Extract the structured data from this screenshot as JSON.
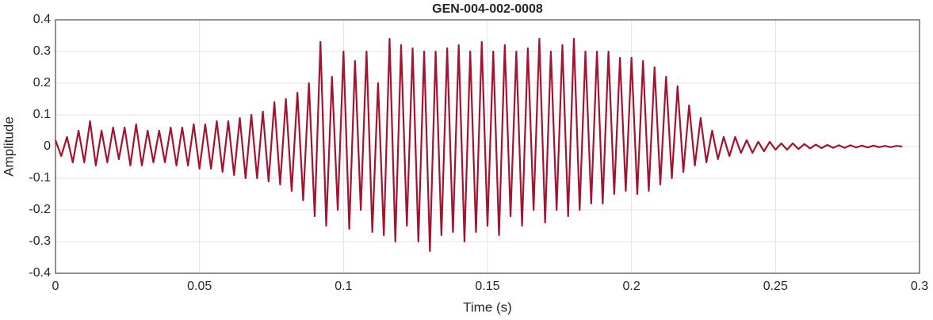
{
  "chart_data": {
    "type": "line",
    "title": "GEN-004-002-0008",
    "xlabel": "Time (s)",
    "ylabel": "Amplitude",
    "xlim": [
      0,
      0.3
    ],
    "ylim": [
      -0.4,
      0.4
    ],
    "xticks": [
      0,
      0.05,
      0.1,
      0.15,
      0.2,
      0.25,
      0.3
    ],
    "yticks": [
      -0.4,
      -0.3,
      -0.2,
      -0.1,
      0,
      0.1,
      0.2,
      0.3,
      0.4
    ],
    "grid": true,
    "x": [
      0,
      0.002,
      0.004,
      0.006,
      0.008,
      0.01,
      0.012,
      0.014,
      0.016,
      0.018,
      0.02,
      0.022,
      0.024,
      0.026,
      0.028,
      0.03,
      0.032,
      0.034,
      0.036,
      0.038,
      0.04,
      0.042,
      0.044,
      0.046,
      0.048,
      0.05,
      0.052,
      0.054,
      0.056,
      0.058,
      0.06,
      0.062,
      0.064,
      0.066,
      0.068,
      0.07,
      0.072,
      0.074,
      0.076,
      0.078,
      0.08,
      0.082,
      0.084,
      0.086,
      0.088,
      0.09,
      0.092,
      0.094,
      0.096,
      0.098,
      0.1,
      0.102,
      0.104,
      0.106,
      0.108,
      0.11,
      0.112,
      0.114,
      0.116,
      0.118,
      0.12,
      0.122,
      0.124,
      0.126,
      0.128,
      0.13,
      0.132,
      0.134,
      0.136,
      0.138,
      0.14,
      0.142,
      0.144,
      0.146,
      0.148,
      0.15,
      0.152,
      0.154,
      0.156,
      0.158,
      0.16,
      0.162,
      0.164,
      0.166,
      0.168,
      0.17,
      0.172,
      0.174,
      0.176,
      0.178,
      0.18,
      0.182,
      0.184,
      0.186,
      0.188,
      0.19,
      0.192,
      0.194,
      0.196,
      0.198,
      0.2,
      0.202,
      0.204,
      0.206,
      0.208,
      0.21,
      0.212,
      0.214,
      0.216,
      0.218,
      0.22,
      0.222,
      0.224,
      0.226,
      0.228,
      0.23,
      0.232,
      0.234,
      0.236,
      0.238,
      0.24,
      0.242,
      0.244,
      0.246,
      0.248,
      0.25,
      0.252,
      0.254,
      0.256,
      0.258,
      0.26,
      0.262,
      0.264,
      0.266,
      0.268,
      0.27,
      0.272,
      0.274,
      0.276,
      0.278,
      0.28,
      0.282,
      0.284,
      0.286,
      0.288,
      0.29,
      0.292,
      0.294
    ],
    "series": [
      {
        "color": "#a2142f",
        "values": [
          0.02,
          -0.03,
          0.03,
          -0.05,
          0.05,
          -0.05,
          0.08,
          -0.06,
          0.05,
          -0.05,
          0.06,
          -0.04,
          0.06,
          -0.06,
          0.07,
          -0.06,
          0.05,
          -0.05,
          0.05,
          -0.05,
          0.06,
          -0.06,
          0.06,
          -0.06,
          0.07,
          -0.07,
          0.07,
          -0.07,
          0.08,
          -0.08,
          0.08,
          -0.09,
          0.09,
          -0.1,
          0.1,
          -0.1,
          0.11,
          -0.11,
          0.14,
          -0.12,
          0.15,
          -0.14,
          0.17,
          -0.17,
          0.2,
          -0.22,
          0.33,
          -0.25,
          0.22,
          -0.2,
          0.3,
          -0.26,
          0.27,
          -0.2,
          0.3,
          -0.27,
          0.2,
          -0.28,
          0.34,
          -0.3,
          0.32,
          -0.25,
          0.31,
          -0.3,
          0.3,
          -0.33,
          0.3,
          -0.28,
          0.31,
          -0.27,
          0.32,
          -0.3,
          0.3,
          -0.27,
          0.33,
          -0.25,
          0.3,
          -0.28,
          0.32,
          -0.22,
          0.3,
          -0.25,
          0.31,
          -0.2,
          0.34,
          -0.24,
          0.3,
          -0.2,
          0.32,
          -0.22,
          0.34,
          -0.2,
          0.3,
          -0.18,
          0.3,
          -0.18,
          0.3,
          -0.15,
          0.28,
          -0.14,
          0.28,
          -0.15,
          0.27,
          -0.14,
          0.25,
          -0.12,
          0.22,
          -0.1,
          0.19,
          -0.08,
          0.13,
          -0.06,
          0.09,
          -0.05,
          0.05,
          -0.04,
          0.03,
          -0.03,
          0.03,
          -0.02,
          0.02,
          -0.02,
          0.015,
          -0.015,
          0.015,
          -0.01,
          0.01,
          -0.01,
          0.01,
          -0.008,
          0.008,
          -0.006,
          0.006,
          -0.005,
          0.005,
          -0.004,
          0.004,
          -0.004,
          0.004,
          -0.003,
          0.003,
          -0.003,
          0.003,
          -0.002,
          0.002,
          -0.002,
          0.002,
          0
        ]
      }
    ]
  }
}
